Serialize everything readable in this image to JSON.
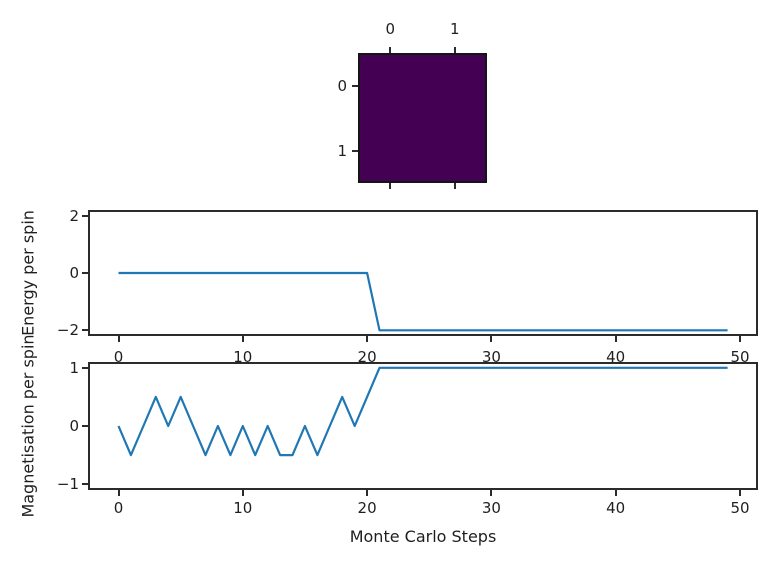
{
  "figure": {
    "background": "#ffffff",
    "line_color": "#1f77b4",
    "spine_color": "#2b2b2b",
    "text_color": "#1f1f1f"
  },
  "chart_data": [
    {
      "type": "heatmap",
      "rows": 2,
      "cols": 2,
      "cell_color": "#440154",
      "x_tick_labels": [
        "0",
        "1"
      ],
      "y_tick_labels": [
        "0",
        "1"
      ]
    },
    {
      "type": "line",
      "ylabel": "Energy per spin",
      "x": [
        0,
        1,
        2,
        3,
        4,
        5,
        6,
        7,
        8,
        9,
        10,
        11,
        12,
        13,
        14,
        15,
        16,
        17,
        18,
        19,
        20,
        21,
        22,
        23,
        24,
        25,
        26,
        27,
        28,
        29,
        30,
        31,
        32,
        33,
        34,
        35,
        36,
        37,
        38,
        39,
        40,
        41,
        42,
        43,
        44,
        45,
        46,
        47,
        48,
        49
      ],
      "y": [
        0,
        0,
        0,
        0,
        0,
        0,
        0,
        0,
        0,
        0,
        0,
        0,
        0,
        0,
        0,
        0,
        0,
        0,
        0,
        0,
        0,
        -2,
        -2,
        -2,
        -2,
        -2,
        -2,
        -2,
        -2,
        -2,
        -2,
        -2,
        -2,
        -2,
        -2,
        -2,
        -2,
        -2,
        -2,
        -2,
        -2,
        -2,
        -2,
        -2,
        -2,
        -2,
        -2,
        -2,
        -2,
        -2
      ],
      "ylim": [
        -2.2,
        2.2
      ],
      "xlim": [
        -2.45,
        51.45
      ],
      "ytick_values": [
        2,
        0,
        -2
      ],
      "ytick_labels": [
        "2",
        "0",
        "−2"
      ],
      "xtick_values": [
        0,
        10,
        20,
        30,
        40,
        50
      ],
      "xtick_labels": [
        "0",
        "10",
        "20",
        "30",
        "40",
        "50"
      ],
      "grid": false,
      "legend": false
    },
    {
      "type": "line",
      "ylabel": "Magnetisation per spin",
      "xlabel": "Monte Carlo Steps",
      "x": [
        0,
        1,
        2,
        3,
        4,
        5,
        6,
        7,
        8,
        9,
        10,
        11,
        12,
        13,
        14,
        15,
        16,
        17,
        18,
        19,
        20,
        21,
        22,
        23,
        24,
        25,
        26,
        27,
        28,
        29,
        30,
        31,
        32,
        33,
        34,
        35,
        36,
        37,
        38,
        39,
        40,
        41,
        42,
        43,
        44,
        45,
        46,
        47,
        48,
        49
      ],
      "y": [
        0,
        -0.5,
        0,
        0.5,
        0,
        0.5,
        0,
        -0.5,
        0,
        -0.5,
        0,
        -0.5,
        0,
        -0.5,
        -0.5,
        0,
        -0.5,
        0,
        0.5,
        0,
        0.5,
        1,
        1,
        1,
        1,
        1,
        1,
        1,
        1,
        1,
        1,
        1,
        1,
        1,
        1,
        1,
        1,
        1,
        1,
        1,
        1,
        1,
        1,
        1,
        1,
        1,
        1,
        1,
        1,
        1
      ],
      "ylim": [
        -1.1,
        1.1
      ],
      "xlim": [
        -2.45,
        51.45
      ],
      "ytick_values": [
        1,
        0,
        -1
      ],
      "ytick_labels": [
        "1",
        "0",
        "−1"
      ],
      "xtick_values": [
        0,
        10,
        20,
        30,
        40,
        50
      ],
      "xtick_labels": [
        "0",
        "10",
        "20",
        "30",
        "40",
        "50"
      ],
      "grid": false,
      "legend": false
    }
  ]
}
